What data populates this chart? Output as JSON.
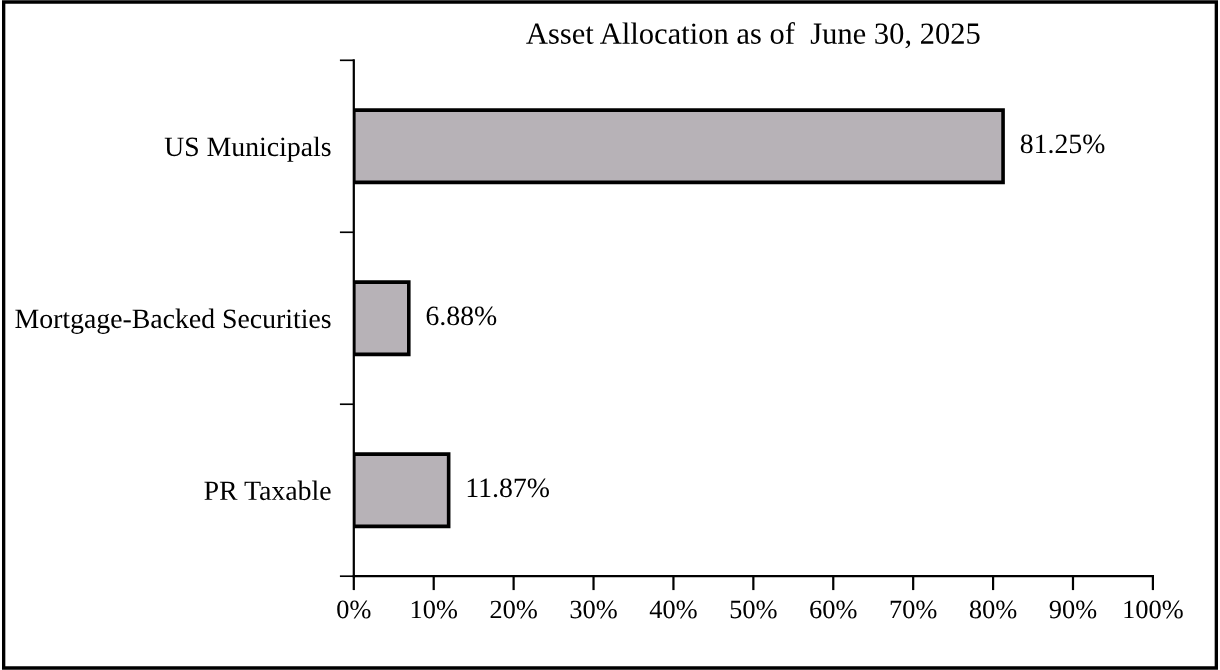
{
  "chart_data": {
    "type": "bar",
    "orientation": "horizontal",
    "title": "Asset Allocation as of  June 30, 2025",
    "categories": [
      "US Municipals",
      "Mortgage-Backed Securities",
      "PR Taxable"
    ],
    "values": [
      81.25,
      6.88,
      11.87
    ],
    "value_labels": [
      "81.25%",
      "6.88%",
      "11.87%"
    ],
    "color": "#b7b2b7",
    "xlim": [
      0,
      100
    ],
    "xticks": [
      {
        "value": 0,
        "label": "0%"
      },
      {
        "value": 10,
        "label": "10%"
      },
      {
        "value": 20,
        "label": "20%"
      },
      {
        "value": 30,
        "label": "30%"
      },
      {
        "value": 40,
        "label": "40%"
      },
      {
        "value": 50,
        "label": "50%"
      },
      {
        "value": 60,
        "label": "60%"
      },
      {
        "value": 70,
        "label": "70%"
      },
      {
        "value": 80,
        "label": "80%"
      },
      {
        "value": 90,
        "label": "90%"
      },
      {
        "value": 100,
        "label": "100%"
      }
    ],
    "grid": false
  }
}
